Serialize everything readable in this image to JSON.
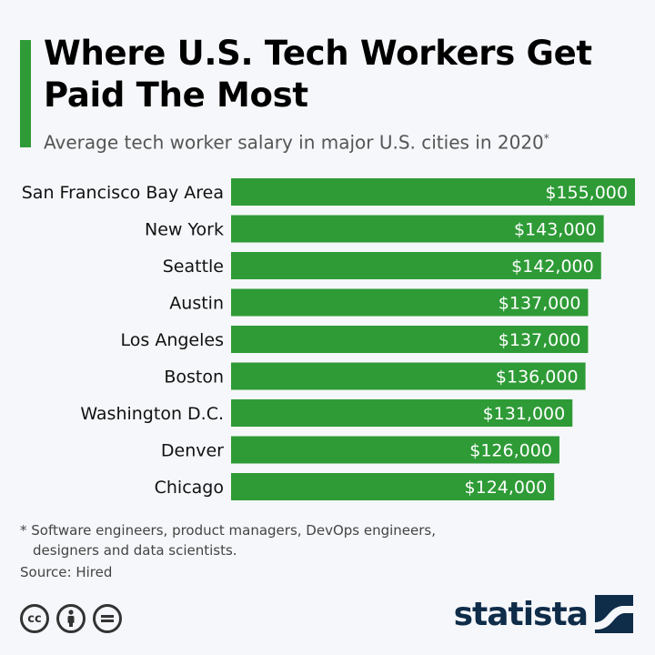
{
  "header": {
    "title": "Where U.S. Tech Workers Get Paid The Most",
    "subtitle": "Average tech worker salary in major U.S. cities in 2020",
    "subtitle_mark": "*"
  },
  "chart_data": {
    "type": "bar",
    "orientation": "horizontal",
    "categories": [
      "San Francisco Bay Area",
      "New York",
      "Seattle",
      "Austin",
      "Los Angeles",
      "Boston",
      "Washington D.C.",
      "Denver",
      "Chicago"
    ],
    "values": [
      155000,
      143000,
      142000,
      137000,
      137000,
      136000,
      131000,
      126000,
      124000
    ],
    "value_labels": [
      "$155,000",
      "$143,000",
      "$142,000",
      "$137,000",
      "$137,000",
      "$136,000",
      "$131,000",
      "$126,000",
      "$124,000"
    ],
    "xlim": [
      0,
      155000
    ],
    "grid": false,
    "bar_color": "#2e9b36"
  },
  "footnote": {
    "line1": "* Software engineers, product managers, DevOps engineers,",
    "line2": "designers and data scientists."
  },
  "source": "Source: Hired",
  "brand": {
    "name": "statista",
    "color": "#0f2c49"
  },
  "license_icons": [
    "cc-icon",
    "attribution-icon",
    "no-derivatives-icon"
  ],
  "colors": {
    "accent": "#2e9b36",
    "background": "#f5f7fa"
  }
}
